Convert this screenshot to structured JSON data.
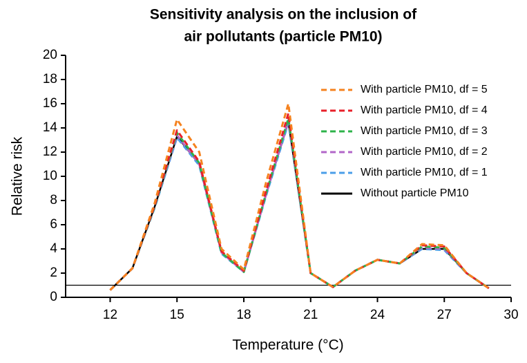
{
  "chart_data": {
    "type": "line",
    "title": [
      "Sensitivity analysis on the inclusion of",
      "air pollutants (particle PM10)"
    ],
    "x_label": "Temperature (°C)",
    "y_label": "Relative risk",
    "x": [
      12,
      13,
      14,
      15,
      16,
      17,
      18,
      19,
      20,
      21,
      22,
      23,
      24,
      25,
      26,
      27,
      28,
      29
    ],
    "series": [
      {
        "name": "With particle PM10, df = 5",
        "color": "#f5821f",
        "dashed": true,
        "values": [
          0.6,
          2.4,
          7.8,
          14.7,
          12.0,
          4.0,
          2.3,
          9.5,
          16.0,
          2.0,
          0.85,
          2.2,
          3.1,
          2.8,
          4.4,
          4.3,
          2.0,
          0.75
        ]
      },
      {
        "name": "With particle PM10, df = 4",
        "color": "#e8202a",
        "dashed": true,
        "values": [
          0.6,
          2.4,
          7.6,
          13.8,
          11.2,
          3.8,
          2.2,
          8.8,
          15.2,
          2.0,
          0.85,
          2.2,
          3.1,
          2.8,
          4.3,
          4.2,
          2.0,
          0.75
        ]
      },
      {
        "name": "With particle PM10, df = 3",
        "color": "#2db34a",
        "dashed": true,
        "values": [
          0.6,
          2.4,
          7.5,
          13.6,
          11.1,
          3.7,
          2.1,
          8.6,
          14.8,
          2.0,
          0.85,
          2.2,
          3.1,
          2.8,
          4.2,
          4.1,
          2.0,
          0.75
        ]
      },
      {
        "name": "With particle PM10, df = 2",
        "color": "#b266c8",
        "dashed": true,
        "values": [
          0.6,
          2.4,
          7.5,
          13.4,
          11.0,
          3.7,
          2.1,
          8.5,
          14.6,
          2.0,
          0.85,
          2.2,
          3.1,
          2.8,
          4.1,
          4.0,
          2.0,
          0.75
        ]
      },
      {
        "name": "With particle PM10, df = 1",
        "color": "#4a9ee8",
        "dashed": true,
        "values": [
          0.6,
          2.4,
          7.4,
          13.2,
          10.9,
          3.6,
          2.1,
          8.4,
          14.4,
          2.0,
          0.85,
          2.2,
          3.1,
          2.8,
          4.0,
          3.9,
          2.0,
          0.75
        ]
      },
      {
        "name": "Without particle PM10",
        "color": "#000000",
        "dashed": false,
        "values": [
          0.6,
          2.4,
          7.5,
          13.3,
          11.0,
          3.7,
          2.1,
          8.5,
          14.5,
          2.0,
          0.85,
          2.2,
          3.1,
          2.8,
          4.0,
          4.0,
          2.0,
          0.75
        ]
      }
    ],
    "reference_line": 1,
    "xlim": [
      10,
      30
    ],
    "xticks": [
      12,
      15,
      18,
      21,
      24,
      27,
      30
    ],
    "ylim": [
      0,
      20
    ],
    "yticks": [
      0,
      2,
      4,
      6,
      8,
      10,
      12,
      14,
      16,
      18,
      20
    ]
  }
}
